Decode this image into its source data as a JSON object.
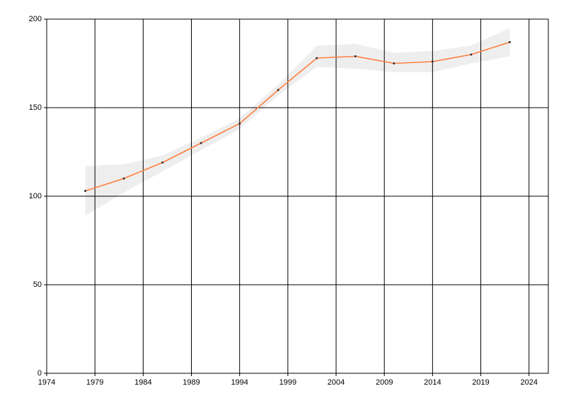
{
  "chart_data": {
    "type": "line",
    "x": [
      1978,
      1982,
      1986,
      1990,
      1994,
      1998,
      2002,
      2006,
      2010,
      2014,
      2018,
      2022
    ],
    "series": [
      {
        "color": "#ff7f3f",
        "values": [
          103,
          110,
          119,
          130,
          141,
          160,
          178,
          179,
          175,
          176,
          180,
          187
        ],
        "upper": [
          117,
          118,
          123,
          133,
          144,
          163,
          185,
          186,
          181,
          182,
          185,
          195
        ],
        "lower": [
          89,
          102,
          114,
          126,
          138,
          157,
          173,
          172,
          170,
          170,
          175,
          179
        ],
        "band_color": "#eeeeee",
        "marker_color": "#333333"
      }
    ],
    "xlim": [
      1974,
      2026
    ],
    "xticks": [
      1974,
      1979,
      1984,
      1989,
      1994,
      1999,
      2004,
      2009,
      2014,
      2019,
      2024
    ],
    "ylim": [
      0,
      200
    ],
    "yticks": [
      0,
      50,
      100,
      150,
      200
    ],
    "grid": true
  }
}
